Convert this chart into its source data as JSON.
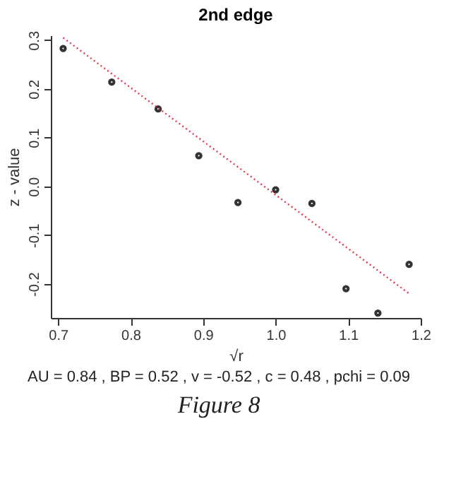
{
  "chart_data": {
    "type": "line",
    "title": "2nd edge",
    "xlabel": "√r",
    "ylabel": "z - value",
    "x": [
      0.707,
      0.774,
      0.838,
      0.894,
      0.948,
      1.0,
      1.05,
      1.097,
      1.141,
      1.184
    ],
    "series": [
      {
        "type": "scatter",
        "color": "#333333",
        "marker": "circle",
        "values": [
          0.283,
          0.214,
          0.159,
          0.063,
          -0.033,
          -0.007,
          -0.035,
          -0.21,
          -0.26,
          -0.16
        ]
      },
      {
        "color": "#e8374a",
        "line_style": "dotted",
        "x": [
          0.707,
          1.184
        ],
        "values": [
          0.305,
          -0.22
        ]
      }
    ],
    "xlim": [
      0.69,
      1.2
    ],
    "ylim": [
      -0.27,
      0.31
    ],
    "xticks": [
      0.7,
      0.8,
      0.9,
      {
        "value": 1.0,
        "label": "1.0"
      },
      1.1,
      1.2
    ],
    "yticks": [
      -0.2,
      -0.1,
      {
        "value": 0.0,
        "label": "0.0"
      },
      0.1,
      0.2,
      0.3
    ],
    "grid": false,
    "annotations": [
      "AU = 0.84 , BP = 0.52 , v = -0.52 , c = 0.48 , pchi = 0.09",
      "Figure 8"
    ]
  }
}
